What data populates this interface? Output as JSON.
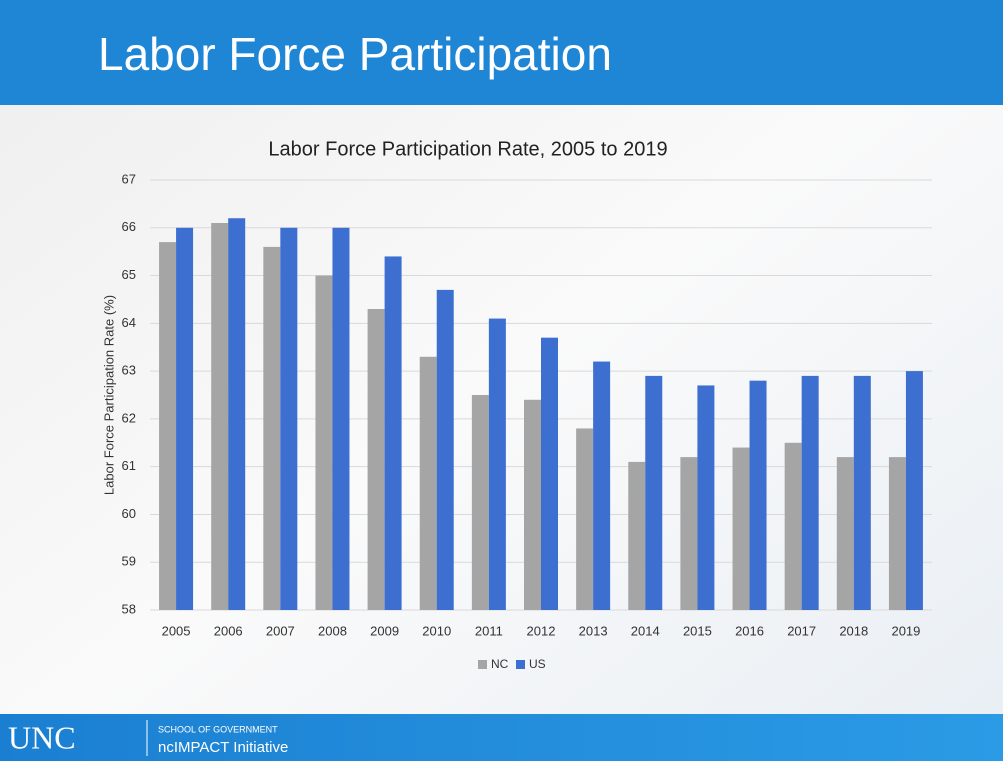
{
  "header": {
    "title": "Labor Force Participation"
  },
  "chart_data": {
    "type": "bar",
    "title": "Labor Force Participation Rate, 2005 to 2019",
    "y_label": "Labor Force Participation Rate (%)",
    "categories": [
      "2005",
      "2006",
      "2007",
      "2008",
      "2009",
      "2010",
      "2011",
      "2012",
      "2013",
      "2014",
      "2015",
      "2016",
      "2017",
      "2018",
      "2019"
    ],
    "series": [
      {
        "name": "NC",
        "color": "#a5a5a5",
        "values": [
          65.7,
          66.1,
          65.6,
          65.0,
          64.3,
          63.3,
          62.5,
          62.4,
          61.8,
          61.1,
          61.2,
          61.4,
          61.5,
          61.2,
          61.2
        ]
      },
      {
        "name": "US",
        "color": "#3d6fd1",
        "values": [
          66.0,
          66.2,
          66.0,
          66.0,
          65.4,
          64.7,
          64.1,
          63.7,
          63.2,
          62.9,
          62.7,
          62.8,
          62.9,
          62.9,
          63.0
        ]
      }
    ],
    "ylim": [
      58,
      67
    ],
    "yticks": [
      58,
      59,
      60,
      61,
      62,
      63,
      64,
      65,
      66,
      67
    ],
    "grid": true,
    "legend": "bottom"
  },
  "footer": {
    "logo": "UNC",
    "school": "SCHOOL OF GOVERNMENT",
    "initiative": "ncIMPACT Initiative"
  }
}
